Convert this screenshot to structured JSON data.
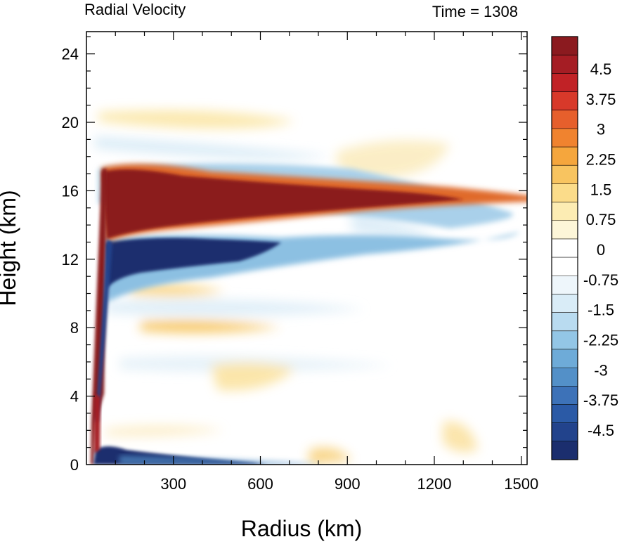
{
  "chart_data": {
    "type": "heatmap",
    "title_left": "Radial Velocity",
    "title_right": "Time = 1308",
    "xlabel": "Radius (km)",
    "ylabel": "Height (km)",
    "xlim": [
      0,
      1520
    ],
    "ylim": [
      0,
      25.3
    ],
    "xticks": [
      300,
      600,
      900,
      1200,
      1500
    ],
    "yticks": [
      0,
      4,
      8,
      12,
      16,
      20,
      24
    ],
    "colorbar": {
      "labels": [
        "4.5",
        "3.75",
        "3",
        "2.25",
        "1.5",
        "0.75",
        "0",
        "-0.75",
        "-1.5",
        "-2.25",
        "-3",
        "-3.75",
        "-4.5"
      ],
      "colors": [
        "#1b2e6e",
        "#22438c",
        "#2b5aa6",
        "#3d72b8",
        "#5390c8",
        "#6eabd8",
        "#93c6e6",
        "#b9dbf0",
        "#d9ecf7",
        "#eef6fb",
        "#ffffff",
        "#ffffff",
        "#fdf6d8",
        "#fcecb3",
        "#fbdc8a",
        "#f8c460",
        "#f5a63d",
        "#f0832f",
        "#e65f2c",
        "#d8392a",
        "#c12226",
        "#a51d24",
        "#8b1a1f"
      ]
    },
    "features": [
      {
        "name": "upper-level outflow",
        "sign": "positive",
        "height_km": 15.5,
        "radius_range_km": [
          50,
          1180
        ]
      },
      {
        "name": "inflow below outflow",
        "sign": "negative",
        "height_km": 12.3,
        "radius_range_km": [
          60,
          740
        ]
      },
      {
        "name": "boundary-layer inflow",
        "sign": "negative",
        "height_km": 0.4,
        "radius_range_km": [
          40,
          560
        ]
      },
      {
        "name": "low-level outflow near center",
        "sign": "positive",
        "height_km": 2.5,
        "radius_range_km": [
          40,
          70
        ]
      }
    ]
  }
}
